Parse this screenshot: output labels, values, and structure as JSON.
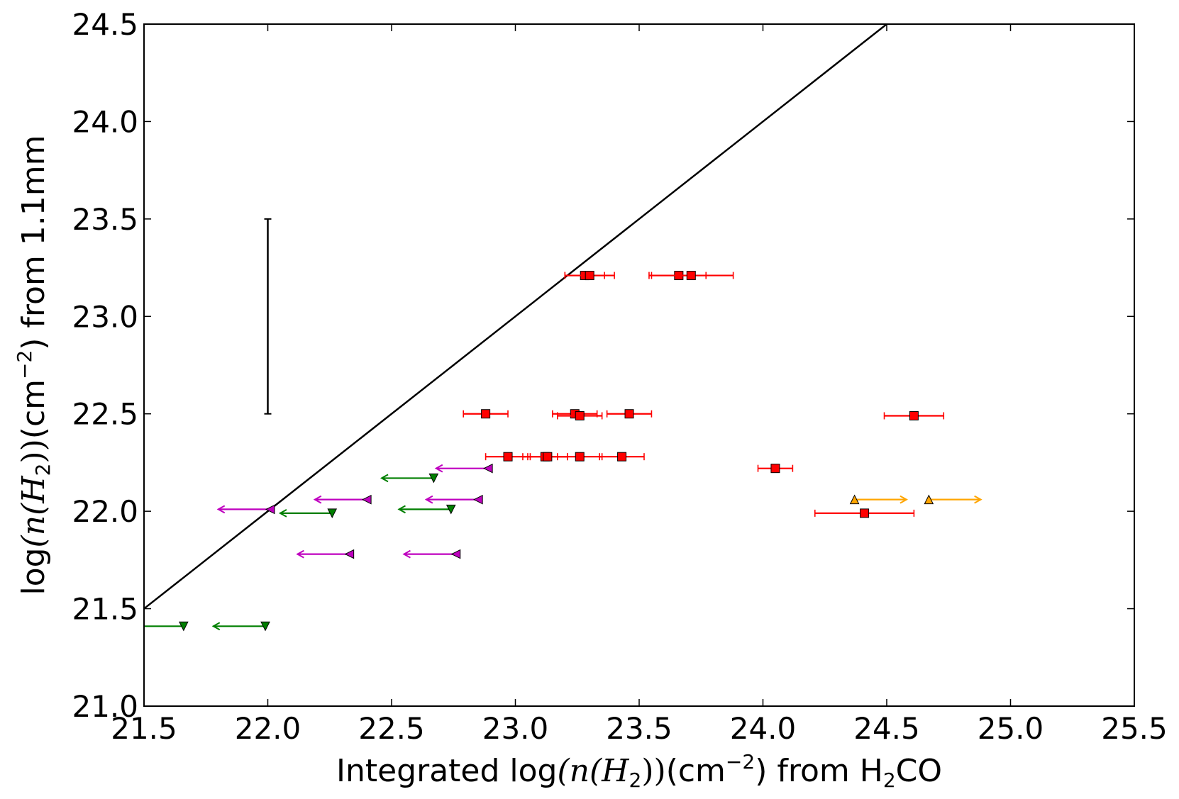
{
  "chart_data": {
    "type": "scatter",
    "title": "",
    "xlabel": {
      "prefix": "Integrated log",
      "math": "(n(H",
      "sub": "2",
      "math_close": "))",
      "unit": "(cm",
      "unit_sup": "−2",
      "unit_close": ")",
      "suffix": " from H",
      "suffix_sub": "2",
      "suffix_end": "CO"
    },
    "ylabel": {
      "prefix": "log",
      "math": "(n(H",
      "sub": "2",
      "math_close": "))",
      "unit": "(cm",
      "unit_sup": "−2",
      "unit_close": ")",
      "suffix": " from 1.1mm"
    },
    "xlim": [
      21.5,
      25.5
    ],
    "ylim": [
      21.0,
      24.5
    ],
    "xticks": [
      "21.5",
      "22.0",
      "22.5",
      "23.0",
      "23.5",
      "24.0",
      "24.5",
      "25.0",
      "25.5"
    ],
    "yticks": [
      "21.0",
      "21.5",
      "22.0",
      "22.5",
      "23.0",
      "23.5",
      "24.0",
      "24.5"
    ],
    "grid": false,
    "one_to_one_line": {
      "x": [
        21.5,
        24.5
      ],
      "y": [
        21.5,
        24.5
      ],
      "color": "#000000"
    },
    "representative_error_bar": {
      "x": 22.0,
      "y_low": 22.5,
      "y_high": 23.5,
      "color": "#000000"
    },
    "series": [
      {
        "marker": "square",
        "color": "#ff0000",
        "points": [
          {
            "x": 23.28,
            "y": 23.21,
            "xerr": 0.08
          },
          {
            "x": 23.3,
            "y": 23.21,
            "xerr": 0.1
          },
          {
            "x": 23.66,
            "y": 23.21,
            "xerr": 0.11
          },
          {
            "x": 23.71,
            "y": 23.21,
            "xerr": 0.17
          },
          {
            "x": 22.88,
            "y": 22.5,
            "xerr": 0.09
          },
          {
            "x": 23.24,
            "y": 22.5,
            "xerr": 0.09
          },
          {
            "x": 23.26,
            "y": 22.49,
            "xerr": 0.09
          },
          {
            "x": 23.46,
            "y": 22.5,
            "xerr": 0.09
          },
          {
            "x": 24.61,
            "y": 22.49,
            "xerr": 0.12
          },
          {
            "x": 22.97,
            "y": 22.28,
            "xerr": 0.09
          },
          {
            "x": 23.12,
            "y": 22.28,
            "xerr": 0.09
          },
          {
            "x": 23.13,
            "y": 22.28,
            "xerr": 0.08
          },
          {
            "x": 23.26,
            "y": 22.28,
            "xerr": 0.09
          },
          {
            "x": 23.43,
            "y": 22.28,
            "xerr": 0.09
          },
          {
            "x": 24.05,
            "y": 22.22,
            "xerr": 0.07
          },
          {
            "x": 24.41,
            "y": 21.99,
            "xerr": 0.2
          }
        ]
      },
      {
        "marker": "triangle-left",
        "color": "#bf00bf",
        "arrow": "left",
        "points": [
          {
            "x": 22.89,
            "y": 22.22,
            "x_to": 22.68
          },
          {
            "x": 22.4,
            "y": 22.06,
            "x_to": 22.19
          },
          {
            "x": 22.85,
            "y": 22.06,
            "x_to": 22.64
          },
          {
            "x": 22.01,
            "y": 22.01,
            "x_to": 21.8
          },
          {
            "x": 22.33,
            "y": 21.78,
            "x_to": 22.12
          },
          {
            "x": 22.76,
            "y": 21.78,
            "x_to": 22.55
          }
        ]
      },
      {
        "marker": "triangle-down",
        "color": "#007f00",
        "arrow": "left",
        "points": [
          {
            "x": 22.67,
            "y": 22.17,
            "x_to": 22.46
          },
          {
            "x": 22.74,
            "y": 22.01,
            "x_to": 22.53
          },
          {
            "x": 22.26,
            "y": 21.99,
            "x_to": 22.05
          },
          {
            "x": 21.66,
            "y": 21.41,
            "x_to": 21.45
          },
          {
            "x": 21.99,
            "y": 21.41,
            "x_to": 21.78
          }
        ]
      },
      {
        "marker": "triangle-up",
        "color": "#ffa500",
        "arrow": "right",
        "points": [
          {
            "x": 24.37,
            "y": 22.06,
            "x_to": 24.58
          },
          {
            "x": 24.67,
            "y": 22.06,
            "x_to": 24.88
          }
        ]
      }
    ]
  }
}
